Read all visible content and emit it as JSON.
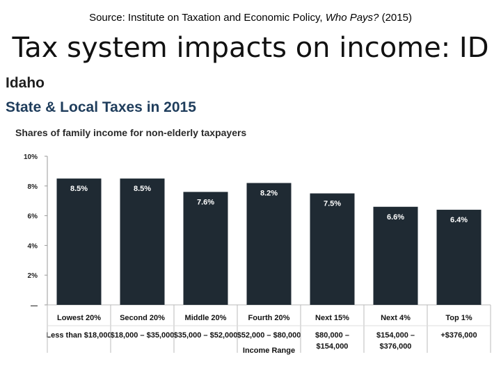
{
  "header": {
    "source_prefix": "Source: Institute on Taxation and Economic Policy, ",
    "source_italic": "Who Pays?",
    "source_suffix": " (2015)",
    "slide_title": "Tax system impacts on income: ID"
  },
  "figure": {
    "state": "Idaho",
    "subtitle": "State & Local Taxes in 2015",
    "caption": "Shares of family income for non-elderly taxpayers"
  },
  "chart_data": {
    "type": "bar",
    "title": "Shares of family income for non-elderly taxpayers",
    "categories": [
      "Lowest 20%",
      "Second 20%",
      "Middle 20%",
      "Fourth 20%",
      "Next 15%",
      "Next 4%",
      "Top 1%"
    ],
    "income_ranges": [
      [
        "Less than $18,000"
      ],
      [
        "$18,000 – $35,000"
      ],
      [
        "$35,000 – $52,000"
      ],
      [
        "$52,000 – $80,000"
      ],
      [
        "$80,000 –",
        "$154,000"
      ],
      [
        "$154,000 –",
        "$376,000"
      ],
      [
        "+$376,000"
      ]
    ],
    "values": [
      8.5,
      8.5,
      7.6,
      8.2,
      7.5,
      6.6,
      6.4
    ],
    "value_labels": [
      "8.5%",
      "8.5%",
      "7.6%",
      "8.2%",
      "7.5%",
      "6.6%",
      "6.4%"
    ],
    "ylim": [
      0,
      10
    ],
    "yticks": [
      0,
      2,
      4,
      6,
      8,
      10
    ],
    "ytick_labels": [
      "—",
      "2%",
      "4%",
      "6%",
      "8%",
      "10%"
    ],
    "xlabel": "Income Range",
    "ylabel": "",
    "bar_color": "#1f2a33",
    "grid": false,
    "legend": "none"
  }
}
